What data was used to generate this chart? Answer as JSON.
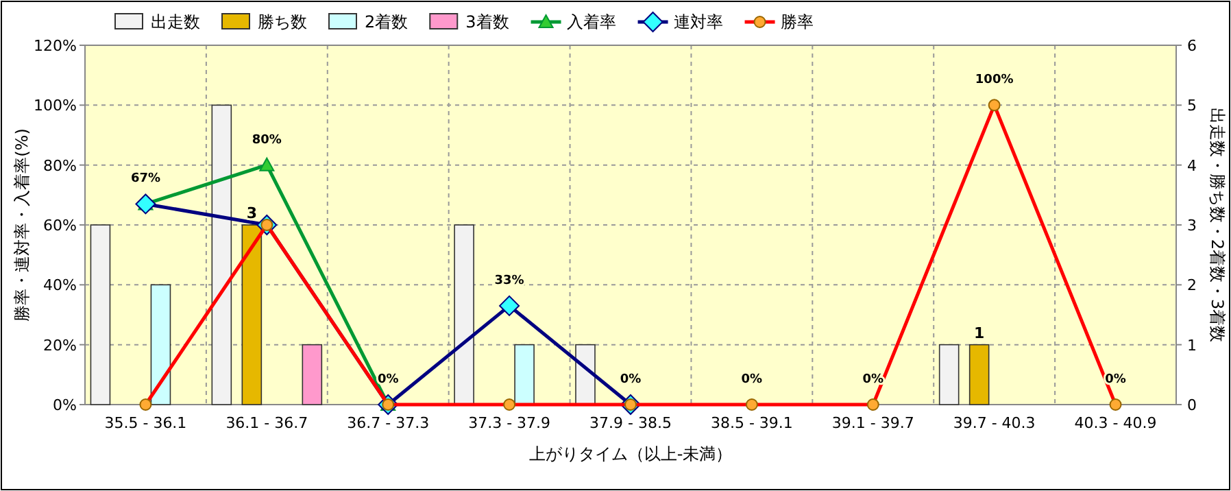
{
  "chart_data": {
    "type": "bar",
    "xlabel": "上がりタイム（以上-未満）",
    "ylabel": "勝率・連対率・入着率(%)",
    "y2label": "出走数・勝ち数・2着数・3着数",
    "categories": [
      "35.5 - 36.1",
      "36.1 - 36.7",
      "36.7 - 37.3",
      "37.3 - 37.9",
      "37.9 - 38.5",
      "38.5 - 39.1",
      "39.1 - 39.7",
      "39.7 - 40.3",
      "40.3 - 40.9"
    ],
    "ylim": [
      0,
      120
    ],
    "yticks": [
      {
        "value": 0,
        "label": "0%"
      },
      {
        "value": 20,
        "label": "20%"
      },
      {
        "value": 40,
        "label": "40%"
      },
      {
        "value": 60,
        "label": "60%"
      },
      {
        "value": 80,
        "label": "80%"
      },
      {
        "value": 100,
        "label": "100%"
      },
      {
        "value": 120,
        "label": "120%"
      }
    ],
    "annotations": [
      {
        "text": "33%",
        "x": "37.3 - 37.9",
        "y": 33
      },
      {
        "text": "0%",
        "x": "37.9 - 38.5",
        "y": 0
      },
      {
        "text": "0%",
        "x": "38.5 - 39.1",
        "y": 0
      },
      {
        "text": "0%",
        "x": "39.1 - 39.7",
        "y": 0
      },
      {
        "text": "100%",
        "x": "39.7 - 40.3",
        "y": 100
      },
      {
        "text": "0%",
        "x": "40.3 - 40.9",
        "y": 0
      }
    ],
    "y2lim": [
      0,
      6
    ],
    "y2ticks": [
      0,
      1,
      2,
      3,
      4,
      5,
      6
    ],
    "grid": true,
    "legend": "top left",
    "series": [
      {
        "name": "出走数",
        "axis": "y2",
        "color": "#f2f2f2",
        "values": [
          3,
          5,
          0,
          3,
          1,
          0,
          0,
          1,
          0
        ]
      },
      {
        "name": "勝ち数",
        "axis": "y2",
        "color": "#e6b800",
        "values": [
          0,
          3,
          0,
          0,
          0,
          0,
          0,
          1,
          0
        ],
        "value_labels": [
          null,
          "3",
          null,
          null,
          null,
          null,
          null,
          "1",
          null
        ]
      },
      {
        "name": "2着数",
        "axis": "y2",
        "color": "#ccffff",
        "values": [
          2,
          0,
          0,
          1,
          0,
          0,
          0,
          0,
          0
        ]
      },
      {
        "name": "3着数",
        "axis": "y2",
        "color": "#ff99cc",
        "values": [
          0,
          1,
          0,
          0,
          0,
          0,
          0,
          0,
          0
        ]
      },
      {
        "name": "入着率",
        "type": "line",
        "marker": "triangle",
        "color": "#009933",
        "values": [
          67,
          80,
          0,
          null,
          null,
          null,
          null,
          null,
          null
        ],
        "value_labels": [
          "67%",
          "80%",
          "0%",
          null,
          null,
          null,
          null,
          null,
          null
        ]
      },
      {
        "name": "連対率",
        "type": "line",
        "marker": "diamond",
        "color": "#000080",
        "values": [
          67,
          60,
          0,
          33,
          0,
          null,
          null,
          null,
          null
        ]
      },
      {
        "name": "勝率",
        "type": "line",
        "marker": "circle",
        "color": "#ff0000",
        "values": [
          0,
          60,
          0,
          0,
          0,
          0,
          0,
          100,
          0
        ]
      }
    ]
  }
}
